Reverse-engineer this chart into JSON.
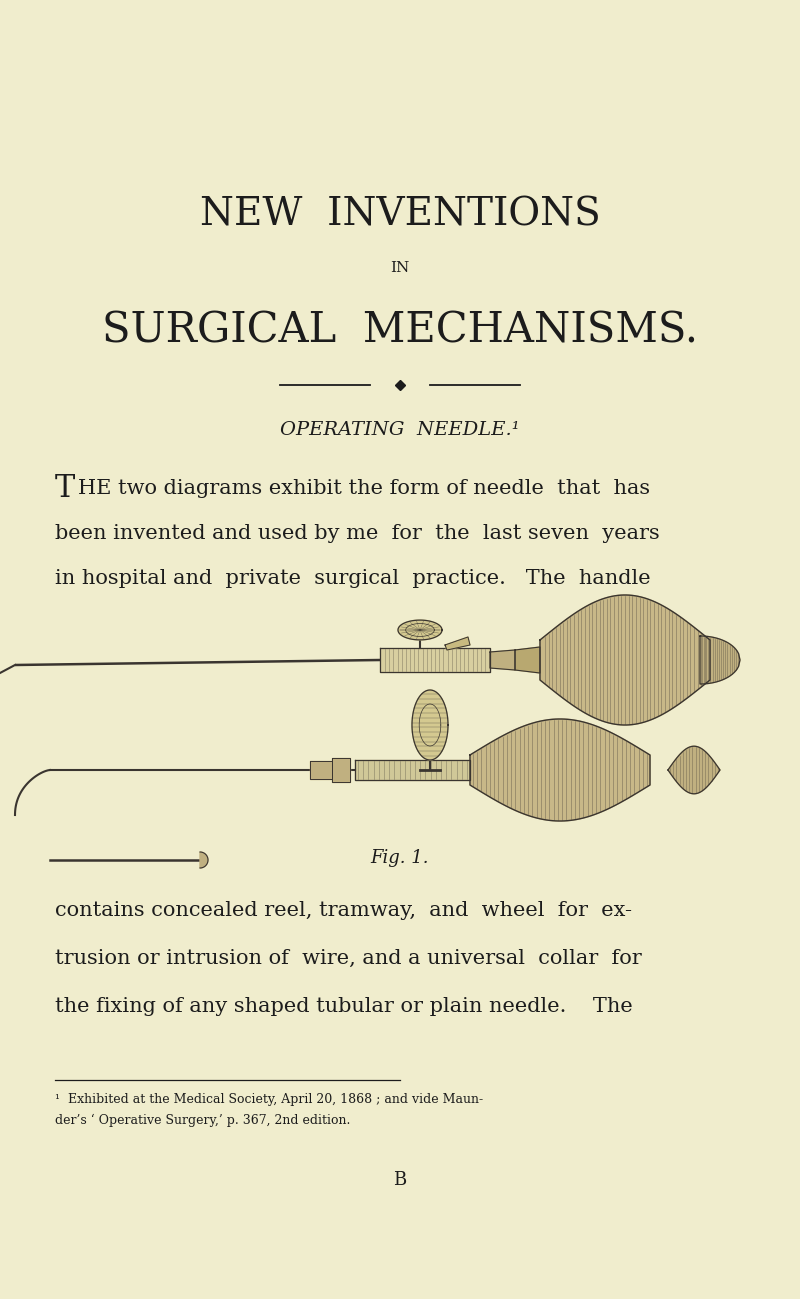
{
  "bg_color": "#f0edcd",
  "text_color": "#1c1c1c",
  "title1": "NEW  INVENTIONS",
  "title2": "’IN",
  "title3": "SURGICAL  MECHANISMS.",
  "subtitle": "OPERATING  NEEDLE.¹",
  "para1_lines": [
    "The two diagrams exhibit the form of needle  that  has",
    "been invented and used by me  for  the  last seven  years",
    "in hospital and  private  surgical  practice.   The  handle"
  ],
  "para2_lines": [
    "contains concealed reel, tramway,  and  wheel  for  ex-",
    "trusion or intrusion of  wire, and a universal  collar  for",
    "the fixing of any shaped tubular or plain needle.    The"
  ],
  "footnote1": "¹  Exhibited at the Medical Society, April 20, 1868 ; and vide Maun-",
  "footnote2": "der’s ‘ Operative Surgery,’ p. 367, 2nd edition.",
  "fig_label": "Fig. 1.",
  "page_letter": "B"
}
